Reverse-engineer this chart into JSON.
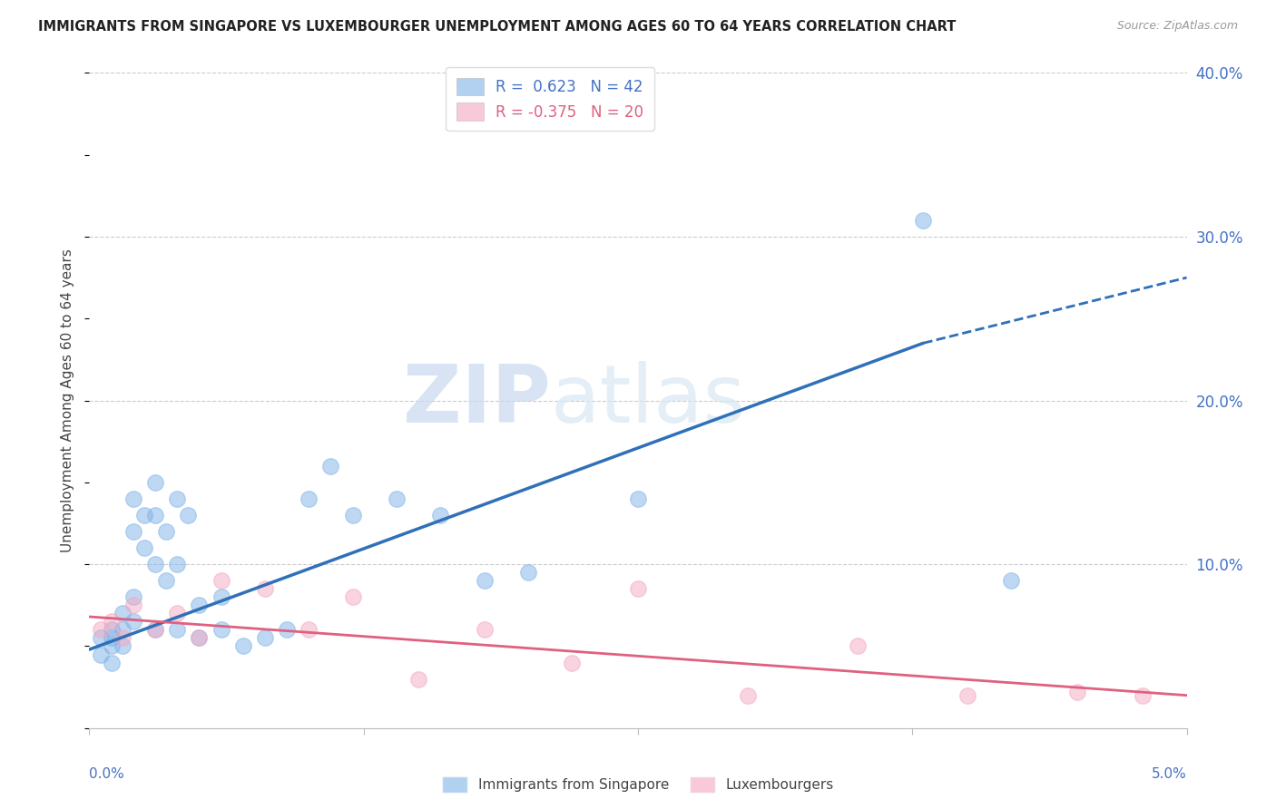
{
  "title": "IMMIGRANTS FROM SINGAPORE VS LUXEMBOURGER UNEMPLOYMENT AMONG AGES 60 TO 64 YEARS CORRELATION CHART",
  "source": "Source: ZipAtlas.com",
  "ylabel": "Unemployment Among Ages 60 to 64 years",
  "x_min": 0.0,
  "x_max": 0.05,
  "y_min": 0.0,
  "y_max": 0.4,
  "right_yticks": [
    0.0,
    0.1,
    0.2,
    0.3,
    0.4
  ],
  "right_yticklabels": [
    "",
    "10.0%",
    "20.0%",
    "30.0%",
    "40.0%"
  ],
  "blue_R": "0.623",
  "blue_N": "42",
  "pink_R": "-0.375",
  "pink_N": "20",
  "legend_label_blue": "Immigrants from Singapore",
  "legend_label_pink": "Luxembourgers",
  "watermark_zip": "ZIP",
  "watermark_atlas": "atlas",
  "blue_color": "#7fb3e8",
  "pink_color": "#f4a8c0",
  "blue_line_color": "#3070b8",
  "pink_line_color": "#e06080",
  "sg_x": [
    0.0005,
    0.0005,
    0.001,
    0.001,
    0.001,
    0.001,
    0.0015,
    0.0015,
    0.0015,
    0.002,
    0.002,
    0.002,
    0.002,
    0.0025,
    0.0025,
    0.003,
    0.003,
    0.003,
    0.003,
    0.0035,
    0.0035,
    0.004,
    0.004,
    0.004,
    0.0045,
    0.005,
    0.005,
    0.006,
    0.006,
    0.007,
    0.008,
    0.009,
    0.01,
    0.011,
    0.012,
    0.014,
    0.016,
    0.018,
    0.02,
    0.025,
    0.038,
    0.042
  ],
  "sg_y": [
    0.055,
    0.045,
    0.06,
    0.05,
    0.04,
    0.055,
    0.07,
    0.06,
    0.05,
    0.14,
    0.12,
    0.08,
    0.065,
    0.13,
    0.11,
    0.15,
    0.13,
    0.1,
    0.06,
    0.12,
    0.09,
    0.14,
    0.1,
    0.06,
    0.13,
    0.075,
    0.055,
    0.08,
    0.06,
    0.05,
    0.055,
    0.06,
    0.14,
    0.16,
    0.13,
    0.14,
    0.13,
    0.09,
    0.095,
    0.14,
    0.31,
    0.09
  ],
  "lux_x": [
    0.0005,
    0.001,
    0.0015,
    0.002,
    0.003,
    0.004,
    0.005,
    0.006,
    0.008,
    0.01,
    0.012,
    0.015,
    0.018,
    0.022,
    0.025,
    0.03,
    0.035,
    0.04,
    0.045,
    0.048
  ],
  "lux_y": [
    0.06,
    0.065,
    0.055,
    0.075,
    0.06,
    0.07,
    0.055,
    0.09,
    0.085,
    0.06,
    0.08,
    0.03,
    0.06,
    0.04,
    0.085,
    0.02,
    0.05,
    0.02,
    0.022,
    0.02
  ],
  "blue_line_x0": 0.0,
  "blue_line_y0": 0.048,
  "blue_line_x1": 0.038,
  "blue_line_y1": 0.235,
  "blue_line_x1_dash": 0.05,
  "blue_line_y1_dash": 0.275,
  "pink_line_x0": 0.0,
  "pink_line_y0": 0.068,
  "pink_line_x1": 0.05,
  "pink_line_y1": 0.02
}
